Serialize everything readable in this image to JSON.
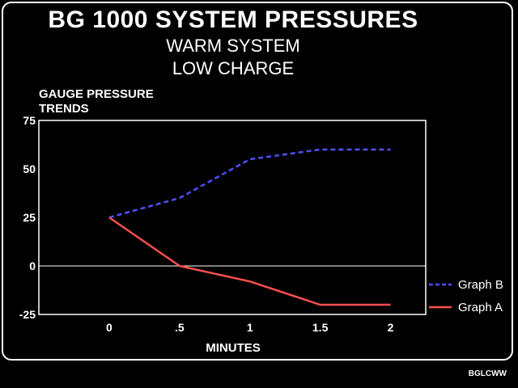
{
  "titles": {
    "main": "BG 1000 SYSTEM PRESSURES",
    "sub1": "WARM SYSTEM",
    "sub2": "LOW CHARGE"
  },
  "footer_code": "BGLCWW",
  "colors": {
    "graph_b": "#4f4fff",
    "graph_a": "#ff4f4f",
    "axis": "#ffffff",
    "background": "#000000"
  },
  "chart_data": {
    "type": "line",
    "title": "BG 1000 SYSTEM PRESSURES",
    "ylabel_lines": [
      "GAUGE PRESSURE",
      "TRENDS"
    ],
    "xlabel": "MINUTES",
    "x": [
      0,
      0.5,
      1,
      1.5,
      2
    ],
    "x_tick_labels": [
      "0",
      ".5",
      "1",
      "1.5",
      "2"
    ],
    "xlim": [
      -0.5,
      2.25
    ],
    "ylim": [
      -25,
      75
    ],
    "y_ticks": [
      75,
      50,
      25,
      0,
      -25
    ],
    "y_tick_labels": [
      "75",
      "50",
      "25",
      "0",
      "-25"
    ],
    "zero_line": true,
    "grid": false,
    "legend_position": "right",
    "series": [
      {
        "name": "Graph B",
        "style": "dashed",
        "color": "#4f4fff",
        "values": [
          25,
          35,
          55,
          60,
          60
        ]
      },
      {
        "name": "Graph A",
        "style": "solid",
        "color": "#ff4f4f",
        "values": [
          25,
          0,
          -8,
          -20,
          -20
        ]
      }
    ]
  }
}
